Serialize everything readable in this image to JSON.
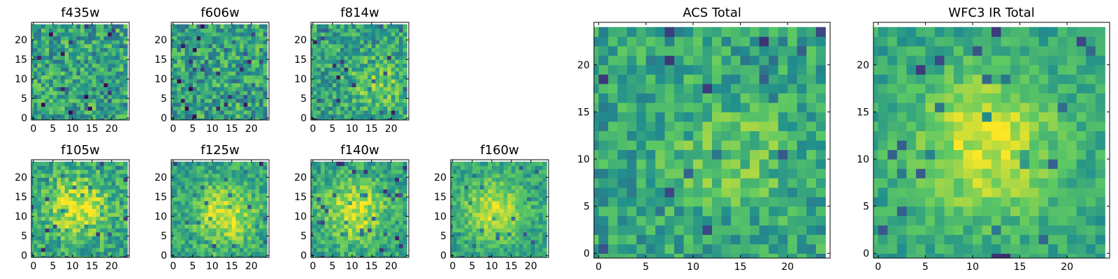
{
  "figure": {
    "colormap": "viridis",
    "background": "#ffffff",
    "colormap_stops": [
      "#440154",
      "#3b528b",
      "#21908d",
      "#5dc963",
      "#fde725"
    ],
    "grid": false,
    "legend": "none"
  },
  "chart_data": [
    {
      "type": "heatmap",
      "title": "f435w",
      "size": 25,
      "xlim": [
        0,
        24
      ],
      "ylim": [
        0,
        24
      ],
      "x_ticks": [
        0,
        5,
        10,
        15,
        20
      ],
      "y_ticks": [
        0,
        5,
        10,
        15,
        20
      ],
      "pattern": "noise",
      "contrast": 0.85,
      "noise": 0.55,
      "seed": 11
    },
    {
      "type": "heatmap",
      "title": "f606w",
      "size": 25,
      "xlim": [
        0,
        24
      ],
      "ylim": [
        0,
        24
      ],
      "x_ticks": [
        0,
        5,
        10,
        15,
        20
      ],
      "y_ticks": [
        0,
        5,
        10,
        15,
        20
      ],
      "pattern": "noise",
      "contrast": 0.85,
      "noise": 0.55,
      "seed": 23
    },
    {
      "type": "heatmap",
      "title": "f814w",
      "size": 25,
      "xlim": [
        0,
        24
      ],
      "ylim": [
        0,
        24
      ],
      "x_ticks": [
        0,
        5,
        10,
        15,
        20
      ],
      "y_ticks": [
        0,
        5,
        10,
        15,
        20
      ],
      "pattern": "faint-source",
      "source_center": [
        17,
        9
      ],
      "contrast": 0.8,
      "noise": 0.5,
      "seed": 37
    },
    {
      "type": "heatmap",
      "title": "f105w",
      "size": 25,
      "xlim": [
        0,
        24
      ],
      "ylim": [
        0,
        24
      ],
      "x_ticks": [
        0,
        5,
        10,
        15,
        20
      ],
      "y_ticks": [
        0,
        5,
        10,
        15,
        20
      ],
      "pattern": "central-source",
      "source_center": [
        12,
        13
      ],
      "contrast": 0.85,
      "noise": 0.45,
      "seed": 41
    },
    {
      "type": "heatmap",
      "title": "f125w",
      "size": 25,
      "xlim": [
        0,
        24
      ],
      "ylim": [
        0,
        24
      ],
      "x_ticks": [
        0,
        5,
        10,
        15,
        20
      ],
      "y_ticks": [
        0,
        5,
        10,
        15,
        20
      ],
      "pattern": "central-source",
      "source_center": [
        14,
        11
      ],
      "contrast": 0.8,
      "noise": 0.4,
      "seed": 53
    },
    {
      "type": "heatmap",
      "title": "f140w",
      "size": 25,
      "xlim": [
        0,
        24
      ],
      "ylim": [
        0,
        24
      ],
      "x_ticks": [
        0,
        5,
        10,
        15,
        20
      ],
      "y_ticks": [
        0,
        5,
        10,
        15,
        20
      ],
      "pattern": "central-source",
      "source_center": [
        11,
        12
      ],
      "contrast": 0.8,
      "noise": 0.4,
      "seed": 67
    },
    {
      "type": "heatmap",
      "title": "f160w",
      "size": 25,
      "xlim": [
        0,
        24
      ],
      "ylim": [
        0,
        24
      ],
      "x_ticks": [
        0,
        5,
        10,
        15,
        20
      ],
      "y_ticks": [
        0,
        5,
        10,
        15,
        20
      ],
      "pattern": "central-source",
      "source_center": [
        11,
        12
      ],
      "contrast": 0.75,
      "noise": 0.35,
      "seed": 79
    },
    {
      "type": "heatmap",
      "title": "ACS Total",
      "size": 25,
      "xlim": [
        0,
        24
      ],
      "ylim": [
        0,
        24
      ],
      "x_ticks": [
        0,
        5,
        10,
        15,
        20
      ],
      "y_ticks": [
        0,
        5,
        10,
        15,
        20
      ],
      "pattern": "faint-source",
      "source_center": [
        15,
        11
      ],
      "contrast": 0.65,
      "noise": 0.55,
      "seed": 89
    },
    {
      "type": "heatmap",
      "title": "WFC3 IR Total",
      "size": 25,
      "xlim": [
        0,
        24
      ],
      "ylim": [
        0,
        24
      ],
      "x_ticks": [
        0,
        5,
        10,
        15,
        20
      ],
      "y_ticks": [
        0,
        5,
        10,
        15,
        20
      ],
      "pattern": "central-source",
      "source_center": [
        12,
        12
      ],
      "contrast": 0.8,
      "noise": 0.3,
      "seed": 97
    }
  ]
}
